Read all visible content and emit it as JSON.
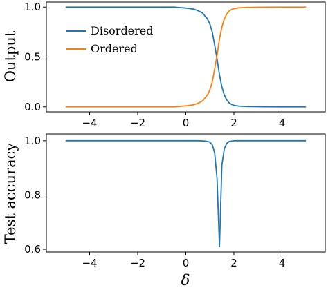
{
  "chart_data": [
    {
      "type": "line",
      "ylabel": "Output",
      "xlabel": "",
      "xlim": [
        -5.8,
        5.8
      ],
      "ylim": [
        -0.05,
        1.05
      ],
      "xticks": [
        -4,
        -2,
        0,
        2,
        4
      ],
      "yticks": [
        0.0,
        0.5,
        1.0
      ],
      "xtick_labels": [
        "−4",
        "−2",
        "0",
        "2",
        "4"
      ],
      "ytick_labels": [
        "0.0",
        "0.5",
        "1.0"
      ],
      "legend_position": "upper-left",
      "grid": false,
      "x": [
        -5,
        -4,
        -3,
        -2,
        -1,
        -0.5,
        0,
        0.3,
        0.5,
        0.7,
        0.9,
        1.0,
        1.1,
        1.2,
        1.3,
        1.4,
        1.5,
        1.6,
        1.7,
        1.8,
        1.9,
        2.0,
        2.2,
        2.5,
        3,
        4,
        5
      ],
      "series": [
        {
          "name": "Disordered",
          "color": "#1f77b4",
          "values": [
            1.0,
            1.0,
            1.0,
            1.0,
            1.0,
            1.0,
            0.99,
            0.98,
            0.965,
            0.94,
            0.88,
            0.83,
            0.75,
            0.62,
            0.48,
            0.32,
            0.2,
            0.12,
            0.07,
            0.04,
            0.025,
            0.015,
            0.008,
            0.004,
            0.002,
            0.0,
            0.0
          ]
        },
        {
          "name": "Ordered",
          "color": "#ff7f0e",
          "values": [
            0.0,
            0.0,
            0.0,
            0.0,
            0.0,
            0.0,
            0.01,
            0.02,
            0.035,
            0.06,
            0.12,
            0.17,
            0.25,
            0.38,
            0.52,
            0.68,
            0.8,
            0.88,
            0.93,
            0.96,
            0.975,
            0.985,
            0.992,
            0.996,
            0.998,
            1.0,
            1.0
          ]
        }
      ]
    },
    {
      "type": "line",
      "ylabel": "Test accuracy",
      "xlabel": "δ",
      "xlim": [
        -5.8,
        5.8
      ],
      "ylim": [
        0.59,
        1.025
      ],
      "xticks": [
        -4,
        -2,
        0,
        2,
        4
      ],
      "yticks": [
        0.6,
        0.8,
        1.0
      ],
      "xtick_labels": [
        "−4",
        "−2",
        "0",
        "2",
        "4"
      ],
      "ytick_labels": [
        "0.6",
        "0.8",
        "1.0"
      ],
      "grid": false,
      "x": [
        -5,
        -4,
        -3,
        -2,
        -1,
        0,
        0.5,
        0.8,
        1.0,
        1.1,
        1.2,
        1.3,
        1.4,
        1.5,
        1.6,
        1.7,
        1.8,
        2.0,
        2.5,
        3,
        4,
        5
      ],
      "series": [
        {
          "name": "",
          "color": "#1f77b4",
          "values": [
            1.0,
            1.0,
            1.0,
            1.0,
            1.0,
            1.0,
            1.0,
            0.999,
            0.995,
            0.985,
            0.955,
            0.86,
            0.61,
            0.91,
            0.97,
            0.99,
            0.997,
            1.0,
            1.0,
            1.0,
            1.0,
            1.0
          ]
        }
      ]
    }
  ]
}
